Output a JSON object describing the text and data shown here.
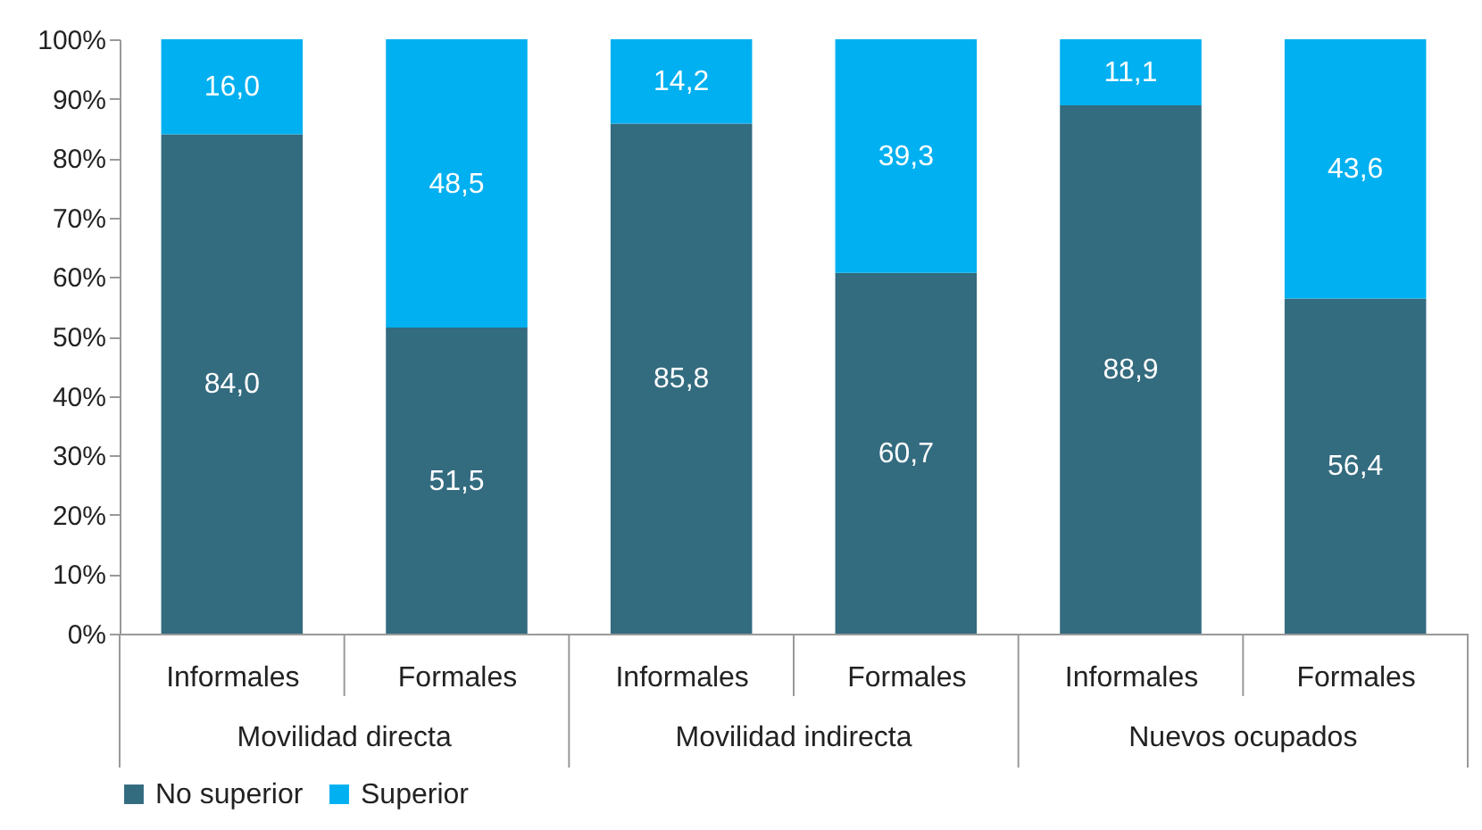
{
  "chart_data": {
    "type": "bar",
    "stacked": true,
    "categories": [
      "Informales",
      "Formales",
      "Informales",
      "Formales",
      "Informales",
      "Formales"
    ],
    "series": [
      {
        "name": "No superior",
        "color": "#336b7f",
        "values": [
          84.0,
          51.5,
          85.8,
          60.7,
          88.9,
          56.4
        ],
        "value_labels": [
          "84,0",
          "51,5",
          "85,8",
          "60,7",
          "88,9",
          "56,4"
        ]
      },
      {
        "name": "Superior",
        "color": "#00b0f0",
        "values": [
          16.0,
          48.5,
          14.2,
          39.3,
          11.1,
          43.6
        ],
        "value_labels": [
          "16,0",
          "48,5",
          "14,2",
          "39,3",
          "11,1",
          "43,6"
        ]
      }
    ],
    "annotations": [
      "Movilidad directa",
      "Movilidad indirecta",
      "Nuevos ocupados"
    ],
    "ylim": [
      0,
      100
    ],
    "yticks": [
      {
        "value": 0,
        "label": "0%"
      },
      {
        "value": 10,
        "label": "10%"
      },
      {
        "value": 20,
        "label": "20%"
      },
      {
        "value": 30,
        "label": "30%"
      },
      {
        "value": 40,
        "label": "40%"
      },
      {
        "value": 50,
        "label": "50%"
      },
      {
        "value": 60,
        "label": "60%"
      },
      {
        "value": 70,
        "label": "70%"
      },
      {
        "value": 80,
        "label": "80%"
      },
      {
        "value": 90,
        "label": "90%"
      },
      {
        "value": 100,
        "label": "100%"
      }
    ],
    "grid": false,
    "legend": "bottom"
  }
}
